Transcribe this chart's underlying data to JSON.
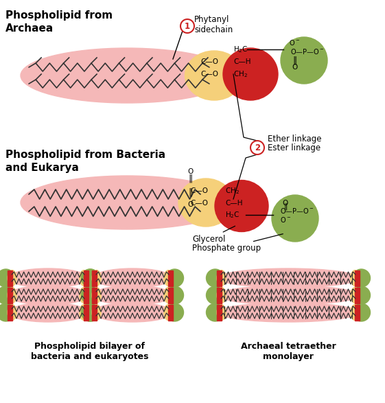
{
  "background_color": "#ffffff",
  "archaea_label": "Phospholipid from\nArchaea",
  "bacteria_label": "Phospholipid from Bacteria\nand Eukarya",
  "phytanyl_label": "Phytanyl\nsidechain",
  "ether_label": "Ether linkage",
  "ester_label": "Ester linkage",
  "glycerol_label": "Glycerol",
  "phosphate_label": "Phosphate group",
  "bilayer_label": "Phospholipid bilayer of\nbacteria and eukaryotes",
  "monolayer_label": "Archaeal tetraether\nmonolayer",
  "pink": "#f5b8b8",
  "yellow": "#f5d07a",
  "red": "#cc2222",
  "green": "#8aad50",
  "red_bar": "#cc2222",
  "circle_color": "#cc2222",
  "text_color": "#333333"
}
